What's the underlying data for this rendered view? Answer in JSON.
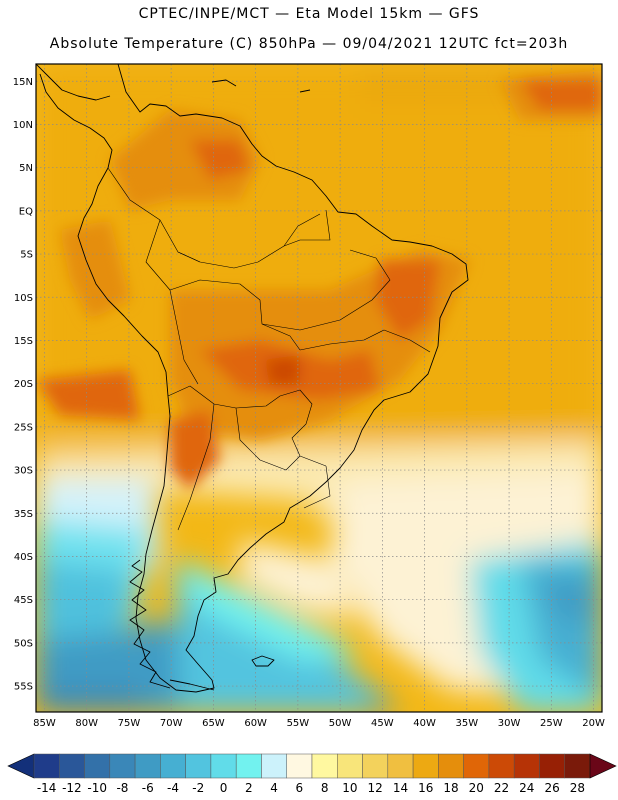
{
  "header": {
    "line1": "CPTEC/INPE/MCT —  Eta Model 15km — GFS",
    "line2": "Absolute Temperature (C) 850hPa — 09/04/2021 12UTC fct=203h"
  },
  "map": {
    "lat_labels": [
      "15N",
      "10N",
      "5N",
      "EQ",
      "5S",
      "10S",
      "15S",
      "20S",
      "25S",
      "30S",
      "35S",
      "40S",
      "45S",
      "50S",
      "55S"
    ],
    "lon_labels": [
      "85W",
      "80W",
      "75W",
      "70W",
      "65W",
      "60W",
      "55W",
      "50W",
      "45W",
      "40W",
      "35W",
      "30W",
      "25W",
      "20W"
    ],
    "lat_range": [
      17,
      -58
    ],
    "lon_range": [
      -86,
      -19
    ],
    "gridlines": true
  },
  "colorbar": {
    "labels": [
      "-14",
      "-12",
      "-10",
      "-8",
      "-6",
      "-4",
      "-2",
      "0",
      "2",
      "4",
      "6",
      "8",
      "10",
      "12",
      "14",
      "16",
      "18",
      "20",
      "22",
      "24",
      "26",
      "28"
    ],
    "colors": [
      "#1f3c8a",
      "#2a5799",
      "#3371a9",
      "#3a87b8",
      "#3f9bc4",
      "#46afd2",
      "#52c4df",
      "#61dce9",
      "#72f2ef",
      "#ccf2fb",
      "#fff8e1",
      "#fff8a0",
      "#f8e57a",
      "#f3d25c",
      "#f0bf40",
      "#eda912",
      "#e58e0c",
      "#e06607",
      "#cc4a06",
      "#b63306",
      "#972005",
      "#7a1a0a"
    ],
    "triangle_low": "#13307a",
    "triangle_high": "#6a0618"
  }
}
